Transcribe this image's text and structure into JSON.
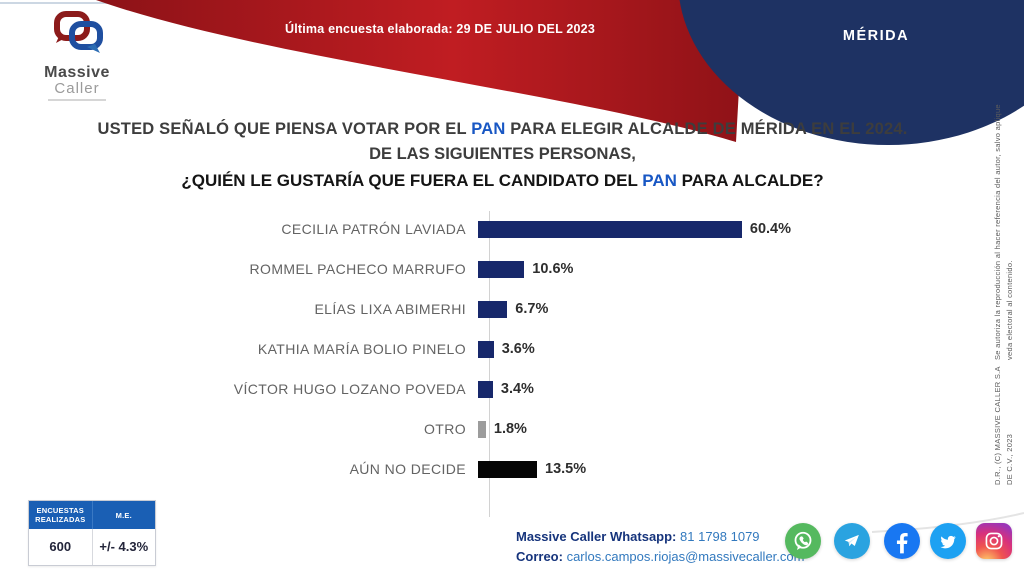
{
  "header": {
    "banner_label": "Última encuesta elaborada:  29 DE JULIO DEL 2023",
    "region": "MÉRIDA",
    "logo": {
      "line1": "Massive",
      "line2": "Caller"
    }
  },
  "question": {
    "line1_pre": "USTED SEÑALÓ QUE PIENSA VOTAR POR EL ",
    "line1_pan": "PAN",
    "line1_post": " PARA ELEGIR ALCALDE DE MÉRIDA  EN EL 2024.",
    "line2": "DE LAS SIGUIENTES PERSONAS,",
    "line3_pre": "¿QUIÉN LE GUSTARÍA QUE FUERA EL CANDIDATO DEL ",
    "line3_pan": "PAN",
    "line3_post": " PARA ALCALDE?"
  },
  "chart_data": {
    "type": "bar",
    "orientation": "horizontal",
    "categories": [
      "CECILIA PATRÓN LAVIADA",
      "ROMMEL PACHECO MARRUFO",
      "ELÍAS LIXA ABIMERHI",
      "KATHIA MARÍA BOLIO PINELO",
      "VÍCTOR HUGO LOZANO POVEDA",
      "OTRO",
      "AÚN NO DECIDE"
    ],
    "values": [
      60.4,
      10.6,
      6.7,
      3.6,
      3.4,
      1.8,
      13.5
    ],
    "value_labels": [
      "60.4%",
      "10.6%",
      "6.7%",
      "3.6%",
      "3.4%",
      "1.8%",
      "13.5%"
    ],
    "colors": [
      "#17286b",
      "#17286b",
      "#17286b",
      "#17286b",
      "#17286b",
      "#9c9c9c",
      "#050505"
    ],
    "xlim": [
      0,
      65
    ],
    "title": "¿Quién le gustaría que fuera el candidato del PAN para alcalde?",
    "xlabel": "",
    "ylabel": "",
    "grid": false,
    "legend": false
  },
  "stats_table": {
    "header_col1": "ENCUESTAS REALIZADAS",
    "header_col2": "M.E.",
    "value_col1": "600",
    "value_col2": "+/- 4.3%"
  },
  "contact": {
    "whatsapp_label": "Massive Caller Whatsapp:",
    "whatsapp_value": "81 1798 1079",
    "email_label": "Correo:",
    "email_value": "carlos.campos.riojas@massivecaller.com"
  },
  "social_icons": [
    "whatsapp",
    "telegram",
    "facebook",
    "twitter",
    "instagram"
  ],
  "legal": {
    "line1": "D.R., (C) MASSIVE CALLER S.A DE C.V., 2023",
    "line2": "Se autoriza la reproducción al hacer referencia del autor, salvo aplique veda electoral al contenido."
  },
  "colors": {
    "brand_red": "#b01a1f",
    "brand_navy": "#1e3263",
    "bar_navy": "#17286b",
    "bar_gray": "#9c9c9c",
    "bar_black": "#050505",
    "pan_blue": "#1857c4",
    "table_header_blue": "#1a5fb4",
    "link_blue": "#3279be"
  }
}
